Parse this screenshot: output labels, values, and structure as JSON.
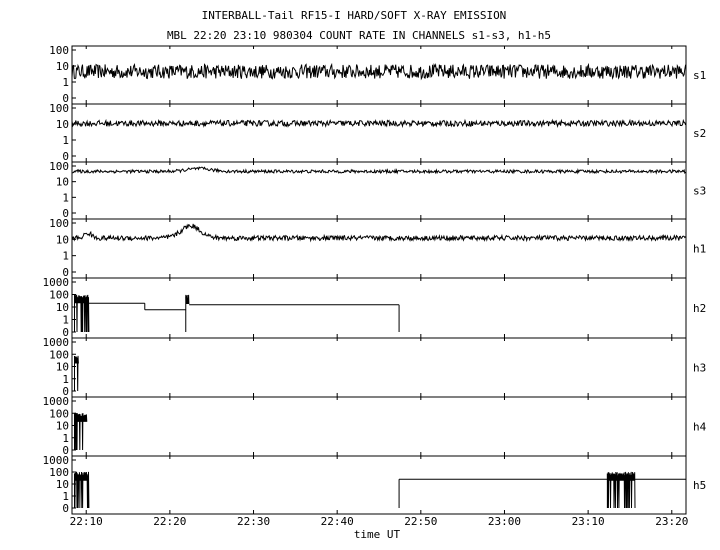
{
  "header": {
    "title": "INTERBALL-Tail RF15-I HARD/SOFT X-RAY EMISSION",
    "subtitle": "MBL 22:20 23:10 980304  COUNT RATE IN CHANNELS s1-s3, h1-h5"
  },
  "chart_data": {
    "type": "line",
    "title": "INTERBALL-Tail RF15-I HARD/SOFT X-RAY EMISSION",
    "subtitle": "MBL 22:20 23:10 980304  COUNT RATE IN CHANNELS s1-s3, h1-h5",
    "xlabel": "time UT",
    "x_unit": "minutes after 22:00 UT",
    "xlim": [
      8.3,
      81.7
    ],
    "x_ticks": [
      {
        "value": 10,
        "label": "22:10"
      },
      {
        "value": 20,
        "label": "22:20"
      },
      {
        "value": 30,
        "label": "22:30"
      },
      {
        "value": 40,
        "label": "22:40"
      },
      {
        "value": 50,
        "label": "22:50"
      },
      {
        "value": 60,
        "label": "23:00"
      },
      {
        "value": 70,
        "label": "23:10"
      },
      {
        "value": 80,
        "label": "23:20"
      }
    ],
    "y_scale": "log",
    "grid": false,
    "legend": "none",
    "panels": [
      {
        "name": "s1",
        "yticks": [
          "100",
          "10",
          "1",
          "0"
        ],
        "ymax": 100,
        "kind": "noise",
        "base": 4.5,
        "amp": 0.45
      },
      {
        "name": "s2",
        "yticks": [
          "100",
          "10",
          "1",
          "0"
        ],
        "ymax": 100,
        "kind": "noise",
        "base": 11,
        "amp": 0.18
      },
      {
        "name": "s3",
        "yticks": [
          "100",
          "10",
          "1",
          "0"
        ],
        "ymax": 100,
        "kind": "noise",
        "base": 45,
        "amp": 0.1,
        "bumps": [
          [
            23.5,
            2.0,
            0.18
          ]
        ]
      },
      {
        "name": "h1",
        "yticks": [
          "100",
          "10",
          "1",
          "0"
        ],
        "ymax": 100,
        "kind": "noise",
        "base": 12,
        "amp": 0.15,
        "bumps": [
          [
            22.5,
            1.6,
            0.75
          ],
          [
            10.2,
            0.6,
            0.3
          ]
        ]
      },
      {
        "name": "h2",
        "yticks": [
          "1000",
          "100",
          "10",
          "1",
          "0"
        ],
        "ymax": 1000,
        "bursts": [
          [
            8.6,
            10.3,
            80,
            0.15
          ],
          [
            21.9,
            22.3,
            70,
            0.15
          ]
        ],
        "steps": [
          [
            10.3,
            17.0,
            20
          ],
          [
            17.0,
            21.9,
            6
          ],
          [
            22.3,
            47.4,
            15
          ]
        ],
        "drops": [
          47.4
        ]
      },
      {
        "name": "h3",
        "yticks": [
          "1000",
          "100",
          "10",
          "1",
          "0"
        ],
        "ymax": 1000,
        "bursts": [
          [
            8.6,
            9.1,
            70,
            0.15
          ]
        ],
        "steps": [],
        "drops": []
      },
      {
        "name": "h4",
        "yticks": [
          "1000",
          "100",
          "10",
          "1",
          "0"
        ],
        "ymax": 1000,
        "bursts": [
          [
            8.6,
            10.1,
            80,
            0.15
          ]
        ],
        "steps": [],
        "drops": []
      },
      {
        "name": "h5",
        "yticks": [
          "1000",
          "100",
          "10",
          "1",
          "0"
        ],
        "ymax": 1000,
        "bursts": [
          [
            8.6,
            10.3,
            75,
            0.15
          ],
          [
            72.3,
            75.6,
            75,
            0.15
          ]
        ],
        "steps": [
          [
            47.4,
            72.3,
            25
          ],
          [
            75.6,
            81.7,
            25
          ]
        ],
        "drops": [
          47.4
        ]
      }
    ]
  }
}
